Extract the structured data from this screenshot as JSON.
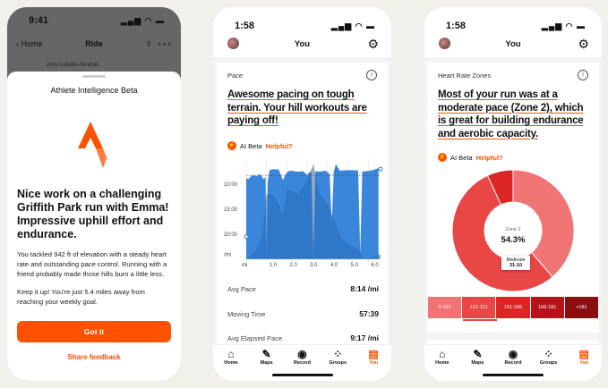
{
  "screen1": {
    "time": "9:41",
    "back": "Home",
    "title": "Ride",
    "athlete": "Arby Isabelle Abrahan",
    "sheet_title": "Athlete Intelligence Beta",
    "headline": "Nice work on a challenging Griffith Park run with Emma! Impressive uphill effort and endurance.",
    "para1": "You tackled 942 ft of elevation with a steady heart rate and outstanding pace control. Running with a friend probably made those hills burn a little less.",
    "para2": "Keep it up! You're just 5.4 miles away from reaching your weekly goal.",
    "button": "Got it",
    "link": "Share feedback",
    "brand_color": "#fc5200"
  },
  "screen2": {
    "time": "1:58",
    "title": "You",
    "card_label": "Pace",
    "insight": "Awesome pacing on tough terrain. Your hill workouts are paying off!",
    "ai_label": "AI Beta",
    "helpful": "Helpful?",
    "chart_data": {
      "type": "area",
      "ylabels": [
        "10:00",
        "15:00",
        "20:00",
        "/mi"
      ],
      "xlabels": [
        "mi",
        "1.0",
        "2.0",
        "3.0",
        "4.0",
        "5.0",
        "6.0"
      ],
      "xlim": [
        0,
        6.6
      ],
      "ylim_min_per_mi": [
        5,
        25
      ],
      "reversed_y": true,
      "pace_x": [
        0,
        0.1,
        0.3,
        0.5,
        0.7,
        0.85,
        0.95,
        1.0,
        1.05,
        1.15,
        1.3,
        1.6,
        1.8,
        1.95,
        2.05,
        2.2,
        2.5,
        2.8,
        3.0,
        3.1,
        3.2,
        3.3,
        3.4,
        3.6,
        3.9,
        4.1,
        4.2,
        4.3,
        4.4,
        4.6,
        4.9,
        5.3,
        5.5,
        5.6,
        5.7,
        5.9,
        6.2,
        6.5
      ],
      "pace_y": [
        8.8,
        9.0,
        8.2,
        8.4,
        8.0,
        9.0,
        8.6,
        24,
        9.5,
        7.2,
        7.0,
        7.1,
        9.2,
        8.0,
        7.4,
        7.3,
        7.5,
        7.4,
        8.2,
        7.6,
        7.6,
        24,
        7.4,
        7.5,
        7.3,
        8.0,
        18,
        7.6,
        6.0,
        7.3,
        7.2,
        7.2,
        7.3,
        24,
        7.5,
        7.4,
        7.2,
        6.8
      ],
      "elev_x": [
        0,
        0.5,
        0.8,
        1.0,
        1.3,
        1.6,
        1.8,
        2.0,
        2.3,
        2.6,
        3.0,
        3.3,
        3.6,
        4.0,
        4.3,
        4.7,
        5.0,
        5.5,
        5.8,
        6.2,
        6.6
      ],
      "elev_y": [
        25,
        23,
        20,
        12,
        12,
        14,
        16,
        11,
        11.5,
        12,
        9,
        6,
        12,
        14,
        17,
        21,
        22,
        23,
        25,
        24.5,
        24
      ],
      "target_pace": "8:14"
    },
    "stats": [
      {
        "label": "Avg Pace",
        "value": "8:14 /mi"
      },
      {
        "label": "Moving Time",
        "value": "57:39"
      },
      {
        "label": "Avg Elapsed Pace",
        "value": "9:17 /mi"
      }
    ]
  },
  "screen3": {
    "time": "1:58",
    "title": "You",
    "card_label": "Heart Rate Zones",
    "insight": "Most of your run was at a moderate pace (Zone 2), which is great for building endurance and aerobic capacity.",
    "ai_label": "AI Beta",
    "helpful": "Helpful?",
    "center_label": "Zone 2",
    "center_value": "54.3%",
    "tooltip_label": "Moderate",
    "tooltip_value": "31:10",
    "chart_data": {
      "type": "pie",
      "donut": true,
      "slices": [
        {
          "zone": "Zone 1",
          "percent": 38.8,
          "color": "#f07474"
        },
        {
          "zone": "Zone 2",
          "percent": 54.3,
          "color": "#e94646"
        },
        {
          "zone": "Zone 3",
          "percent": 6.9,
          "color": "#dd2525"
        }
      ]
    },
    "zones": [
      {
        "label": "0-121",
        "color": "#f07474"
      },
      {
        "label": "121-151",
        "color": "#e94646"
      },
      {
        "label": "151-166",
        "color": "#dd2525"
      },
      {
        "label": "166-181",
        "color": "#b5141a"
      },
      {
        "label": ">181",
        "color": "#8a0e10"
      }
    ]
  },
  "tabs": [
    {
      "label": "Home",
      "icon": "home-icon"
    },
    {
      "label": "Maps",
      "icon": "map-icon"
    },
    {
      "label": "Record",
      "icon": "record-icon"
    },
    {
      "label": "Groups",
      "icon": "groups-icon"
    },
    {
      "label": "You",
      "icon": "you-icon"
    }
  ]
}
